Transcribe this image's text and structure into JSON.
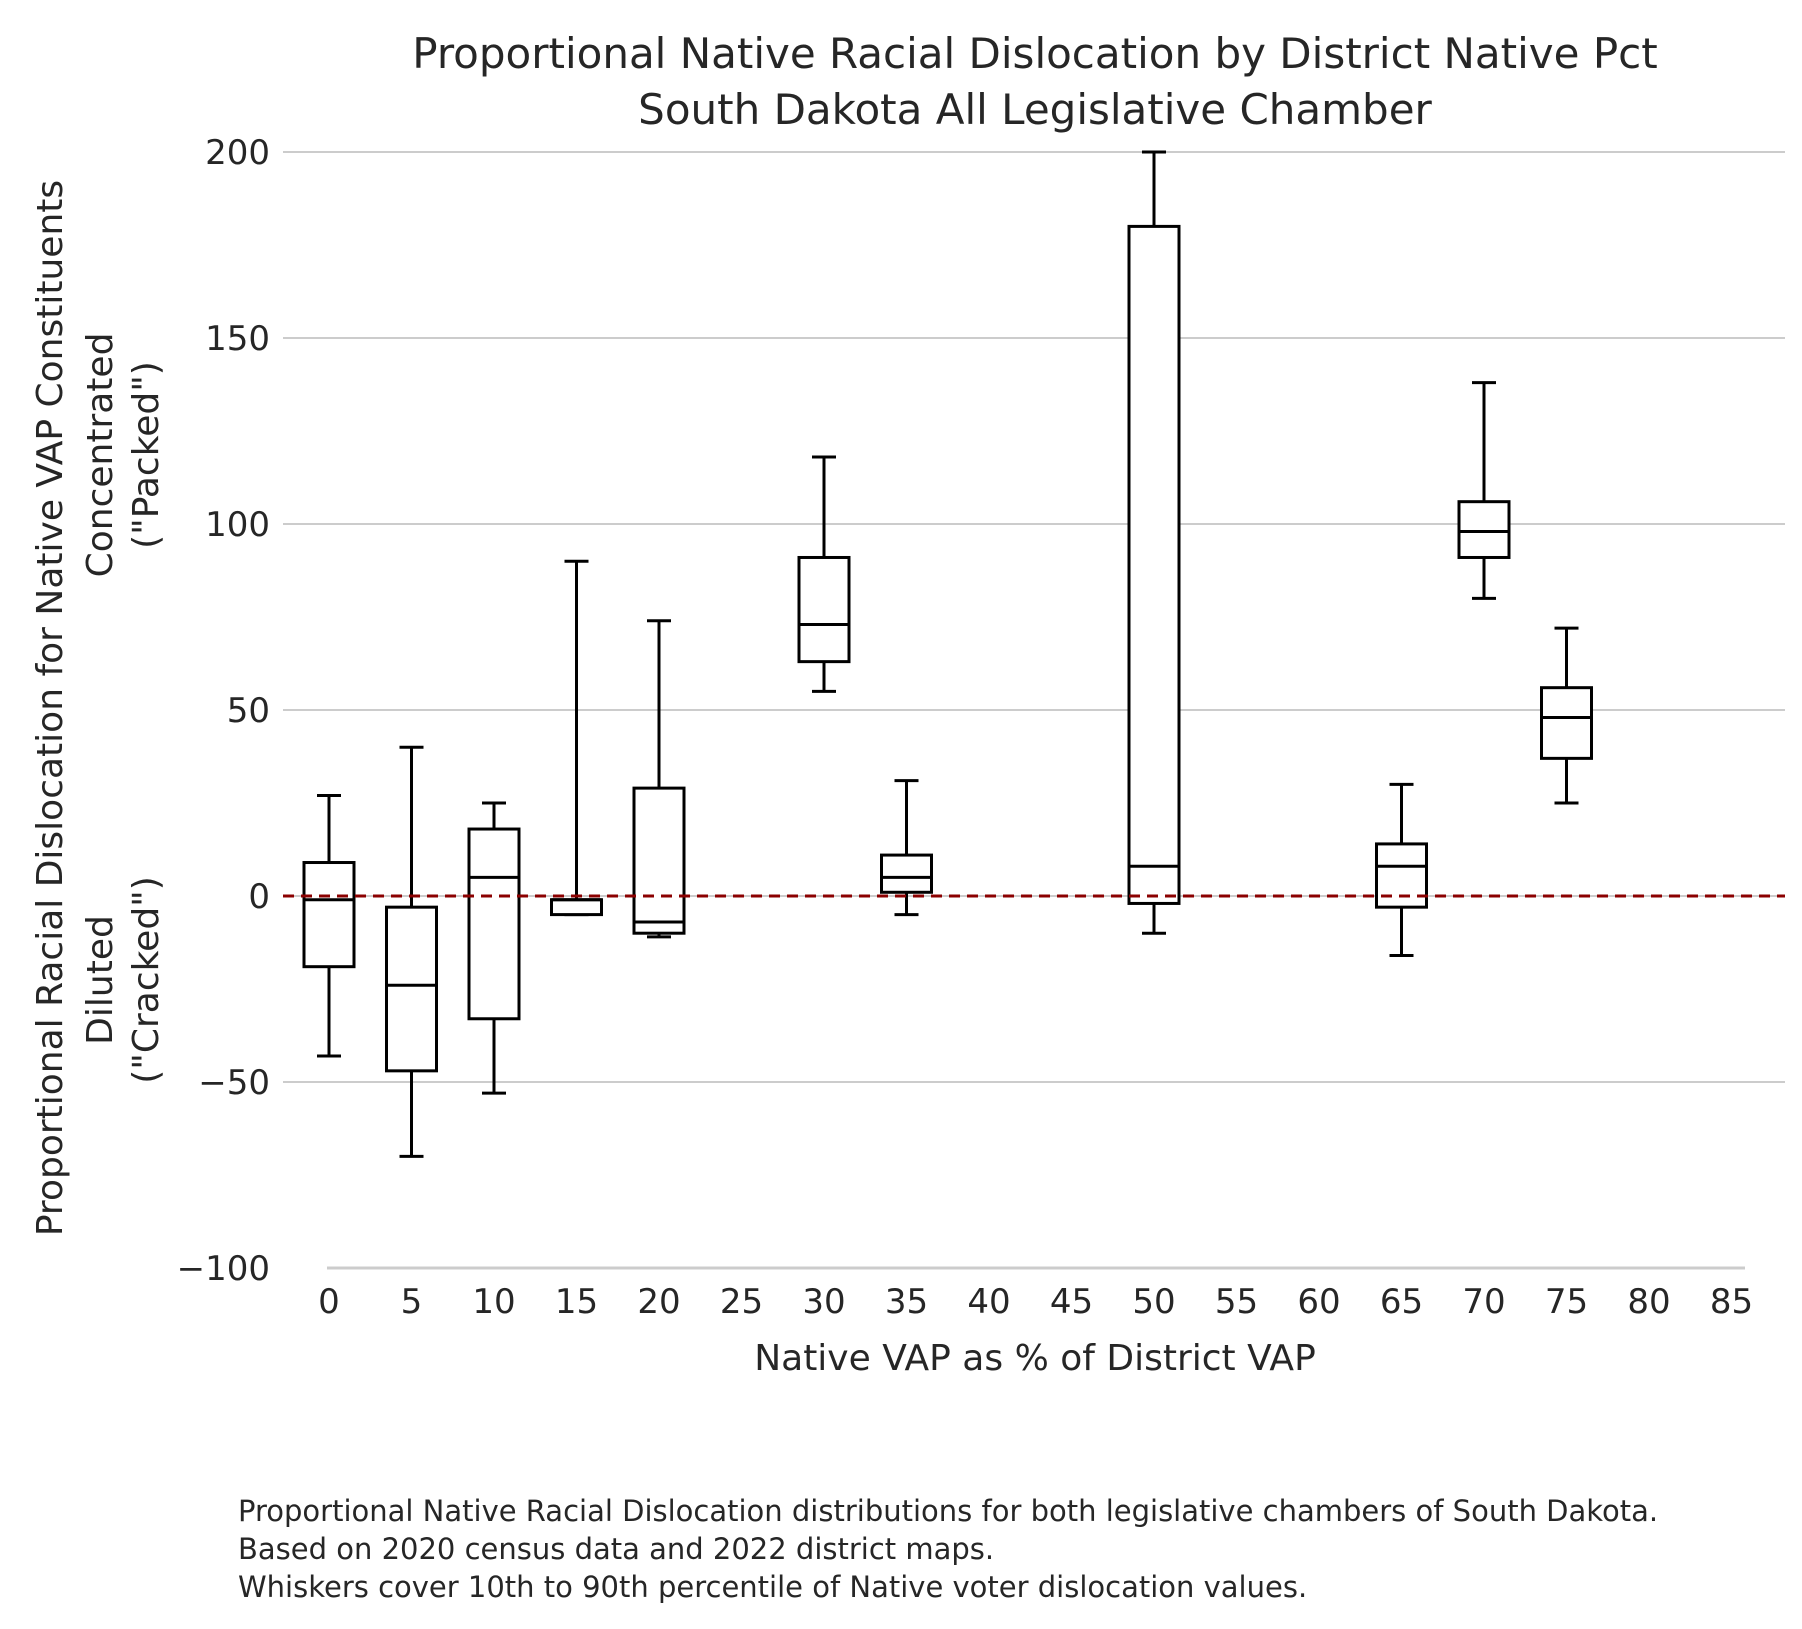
{
  "chart_data": {
    "type": "box",
    "title": [
      "Proportional Native Racial Dislocation by District Native Pct",
      "South Dakota All Legislative Chamber"
    ],
    "xlabel": "Native VAP as % of District VAP",
    "ylabel": [
      "Proportional Racial Dislocation for Native VAP Constituents",
      "Concentrated",
      "(\"Packed\")",
      "Diluted",
      "(\"Cracked\")"
    ],
    "x_ticks": [
      "0",
      "5",
      "10",
      "15",
      "20",
      "25",
      "30",
      "35",
      "40",
      "45",
      "50",
      "55",
      "60",
      "65",
      "70",
      "75",
      "80",
      "85"
    ],
    "y_ticks": [
      200,
      150,
      100,
      50,
      0,
      -50,
      -100
    ],
    "ylim": [
      -100,
      200
    ],
    "grid": true,
    "reference_line": {
      "y": 0,
      "color": "#8b0000",
      "style": "dashed"
    },
    "boxes": [
      {
        "x": 0,
        "whisker_low": -43,
        "q1": -19,
        "median": -1,
        "q3": 9,
        "whisker_high": 27
      },
      {
        "x": 5,
        "whisker_low": -70,
        "q1": -47,
        "median": -24,
        "q3": -3,
        "whisker_high": 40
      },
      {
        "x": 10,
        "whisker_low": -53,
        "q1": -33,
        "median": 5,
        "q3": 18,
        "whisker_high": 25
      },
      {
        "x": 15,
        "whisker_low": -5,
        "q1": -5,
        "median": -1,
        "q3": -1,
        "whisker_high": 90
      },
      {
        "x": 20,
        "whisker_low": -11,
        "q1": -10,
        "median": -7,
        "q3": 29,
        "whisker_high": 74
      },
      {
        "x": 30,
        "whisker_low": 55,
        "q1": 63,
        "median": 73,
        "q3": 91,
        "whisker_high": 118
      },
      {
        "x": 35,
        "whisker_low": -5,
        "q1": 1,
        "median": 5,
        "q3": 11,
        "whisker_high": 31
      },
      {
        "x": 50,
        "whisker_low": -10,
        "q1": -2,
        "median": 8,
        "q3": 180,
        "whisker_high": 200
      },
      {
        "x": 65,
        "whisker_low": -16,
        "q1": -3,
        "median": 8,
        "q3": 14,
        "whisker_high": 30
      },
      {
        "x": 70,
        "whisker_low": 80,
        "q1": 91,
        "median": 98,
        "q3": 106,
        "whisker_high": 138
      },
      {
        "x": 75,
        "whisker_low": 25,
        "q1": 37,
        "median": 48,
        "q3": 56,
        "whisker_high": 72
      }
    ]
  },
  "caption": [
    "Proportional Native Racial Dislocation distributions for both legislative chambers of South Dakota.",
    "Based on 2020 census data and 2022 district maps.",
    "Whiskers cover 10th to 90th percentile of Native voter dislocation values."
  ]
}
